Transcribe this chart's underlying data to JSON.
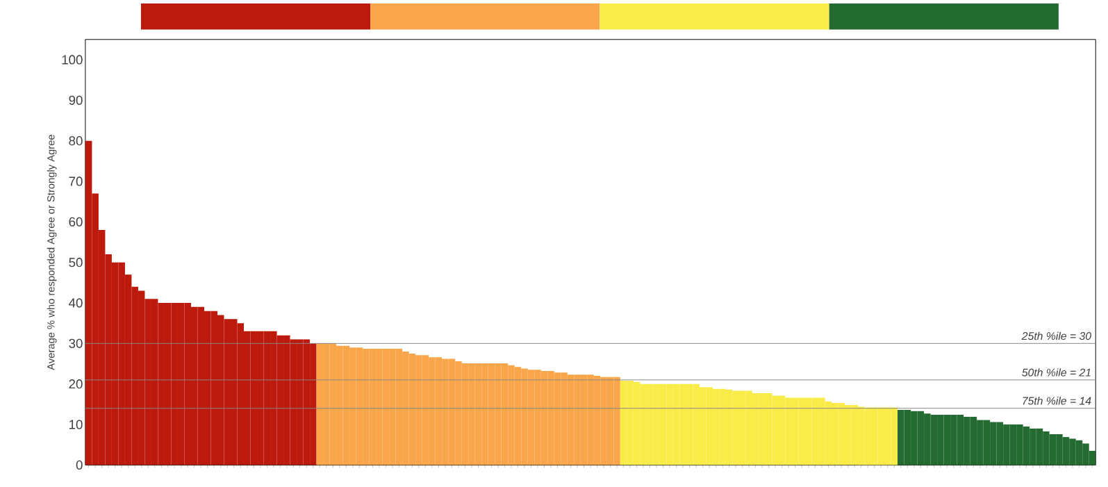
{
  "chart_data": {
    "type": "bar",
    "ylabel": "Average % who responded Agree or Strongly Agree",
    "categories": [
      null,
      null,
      null,
      null,
      null,
      null,
      null,
      null,
      null,
      null,
      null,
      null,
      null,
      null,
      null,
      null,
      null,
      null,
      null,
      null,
      null,
      null,
      null,
      null,
      null,
      null,
      null,
      null,
      null,
      null,
      null,
      null,
      null,
      null,
      null,
      null,
      null,
      null,
      null,
      null,
      null,
      null,
      null,
      null,
      null,
      null,
      null,
      null,
      null,
      null,
      null,
      null,
      null,
      null,
      null,
      null,
      null,
      null,
      null,
      null,
      null,
      null,
      null,
      null,
      null,
      null,
      null,
      null,
      null,
      null,
      null,
      null,
      null,
      null,
      null,
      null,
      null,
      null,
      null,
      null,
      null,
      null,
      null,
      null,
      null,
      null,
      null,
      null,
      null,
      null,
      null,
      null,
      null,
      null,
      null,
      null,
      null,
      null,
      null,
      null,
      null,
      null,
      null,
      null,
      null,
      null,
      null,
      null,
      null,
      null,
      null,
      null,
      null,
      null,
      null,
      null,
      null,
      null,
      null,
      null,
      null,
      null,
      null,
      null,
      null,
      null,
      null,
      null,
      null,
      null,
      null,
      null,
      null,
      null,
      null,
      null,
      null,
      null,
      null,
      null,
      null,
      null,
      null,
      null,
      null,
      null,
      null,
      null,
      null,
      null,
      null,
      null,
      null
    ],
    "series": [
      {
        "color": "#bd1a0e",
        "values": [
          80,
          67,
          58,
          52,
          50,
          50,
          47,
          44,
          43,
          41,
          41,
          40,
          40,
          40,
          40,
          40,
          39,
          39,
          38,
          38,
          37,
          36,
          36,
          35,
          33,
          33,
          33,
          33,
          33,
          32,
          32,
          31,
          31,
          31,
          30,
          null,
          null,
          null,
          null,
          null,
          null,
          null,
          null,
          null,
          null,
          null,
          null,
          null,
          null,
          null,
          null,
          null,
          null,
          null,
          null,
          null,
          null,
          null,
          null,
          null,
          null,
          null,
          null,
          null,
          null,
          null,
          null,
          null,
          null,
          null,
          null,
          null,
          null,
          null,
          null,
          null,
          null,
          null,
          null,
          null,
          null,
          null,
          null,
          null,
          null,
          null,
          null,
          null,
          null,
          null,
          null,
          null,
          null,
          null,
          null,
          null,
          null,
          null,
          null,
          null,
          null,
          null,
          null,
          null,
          null,
          null,
          null,
          null,
          null,
          null,
          null,
          null,
          null,
          null,
          null,
          null,
          null,
          null,
          null,
          null,
          null,
          null,
          null,
          null,
          null,
          null,
          null,
          null,
          null,
          null,
          null,
          null,
          null,
          null,
          null,
          null,
          null,
          null,
          null,
          null,
          null,
          null,
          null,
          null,
          null,
          null,
          null,
          null,
          null,
          null,
          null,
          null,
          null
        ]
      },
      {
        "color": "#f9a54a",
        "values": [
          null,
          null,
          null,
          null,
          null,
          null,
          null,
          null,
          null,
          null,
          null,
          null,
          null,
          null,
          null,
          null,
          null,
          null,
          null,
          null,
          null,
          null,
          null,
          null,
          null,
          null,
          null,
          null,
          null,
          null,
          null,
          null,
          null,
          null,
          null,
          30,
          30,
          30,
          29.4,
          29.4,
          29,
          29,
          28.7,
          28.7,
          28.7,
          28.7,
          28.7,
          28.7,
          28,
          27.5,
          27.1,
          27.1,
          26.6,
          26.6,
          26.2,
          26.2,
          25.6,
          25.1,
          25.1,
          25.1,
          25.1,
          25.1,
          25.1,
          25.1,
          24.6,
          24.2,
          23.8,
          23.5,
          23.5,
          23.2,
          23.2,
          22.8,
          22.8,
          22.3,
          22.3,
          22.3,
          22.3,
          22,
          21.7,
          21.7,
          21.7,
          null,
          null,
          null,
          null,
          null,
          null,
          null,
          null,
          null,
          null,
          null,
          null,
          null,
          null,
          null,
          null,
          null,
          null,
          null,
          null,
          null,
          null,
          null,
          null,
          null,
          null,
          null,
          null,
          null,
          null,
          null,
          null,
          null,
          null,
          null,
          null,
          null,
          null,
          null,
          null,
          null,
          null,
          null,
          null,
          null,
          null,
          null,
          null,
          null,
          null,
          null,
          null,
          null,
          null,
          null,
          null,
          null,
          null,
          null,
          null,
          null,
          null,
          null,
          null,
          null,
          null,
          null,
          null,
          null,
          null,
          null,
          null
        ]
      },
      {
        "color": "#f9ec48",
        "values": [
          null,
          null,
          null,
          null,
          null,
          null,
          null,
          null,
          null,
          null,
          null,
          null,
          null,
          null,
          null,
          null,
          null,
          null,
          null,
          null,
          null,
          null,
          null,
          null,
          null,
          null,
          null,
          null,
          null,
          null,
          null,
          null,
          null,
          null,
          null,
          null,
          null,
          null,
          null,
          null,
          null,
          null,
          null,
          null,
          null,
          null,
          null,
          null,
          null,
          null,
          null,
          null,
          null,
          null,
          null,
          null,
          null,
          null,
          null,
          null,
          null,
          null,
          null,
          null,
          null,
          null,
          null,
          null,
          null,
          null,
          null,
          null,
          null,
          null,
          null,
          null,
          null,
          null,
          null,
          null,
          null,
          20.8,
          20.8,
          20.5,
          20,
          20,
          20,
          20,
          20,
          20,
          20,
          20,
          20,
          19.2,
          19.2,
          18.8,
          18.8,
          18.6,
          18.3,
          18.3,
          18.3,
          17.7,
          17.7,
          17.7,
          17.1,
          17.1,
          16.6,
          16.6,
          16.6,
          16.6,
          16.6,
          16.6,
          15.7,
          15.3,
          15.3,
          14.8,
          14.8,
          14.4,
          14.2,
          14.2,
          14.2,
          14.2,
          14.2,
          null,
          null,
          null,
          null,
          null,
          null,
          null,
          null,
          null,
          null,
          null,
          null,
          null,
          null,
          null,
          null,
          null,
          null,
          null,
          null,
          null,
          null,
          null,
          null,
          null,
          null,
          null,
          null,
          null,
          null
        ]
      },
      {
        "color": "#236b30",
        "values": [
          null,
          null,
          null,
          null,
          null,
          null,
          null,
          null,
          null,
          null,
          null,
          null,
          null,
          null,
          null,
          null,
          null,
          null,
          null,
          null,
          null,
          null,
          null,
          null,
          null,
          null,
          null,
          null,
          null,
          null,
          null,
          null,
          null,
          null,
          null,
          null,
          null,
          null,
          null,
          null,
          null,
          null,
          null,
          null,
          null,
          null,
          null,
          null,
          null,
          null,
          null,
          null,
          null,
          null,
          null,
          null,
          null,
          null,
          null,
          null,
          null,
          null,
          null,
          null,
          null,
          null,
          null,
          null,
          null,
          null,
          null,
          null,
          null,
          null,
          null,
          null,
          null,
          null,
          null,
          null,
          null,
          null,
          null,
          null,
          null,
          null,
          null,
          null,
          null,
          null,
          null,
          null,
          null,
          null,
          null,
          null,
          null,
          null,
          null,
          null,
          null,
          null,
          null,
          null,
          null,
          null,
          null,
          null,
          null,
          null,
          null,
          null,
          null,
          null,
          null,
          null,
          null,
          null,
          null,
          null,
          null,
          null,
          null,
          13.6,
          13.6,
          13.3,
          13.3,
          12.7,
          12.4,
          12.4,
          12.4,
          12.4,
          12.4,
          11.9,
          11.9,
          11.1,
          11.1,
          10.6,
          10.6,
          10,
          10,
          10,
          9.5,
          9,
          9,
          8.3,
          7.6,
          7.6,
          6.9,
          6.5,
          6.1,
          5.3,
          3.5
        ]
      }
    ],
    "ylim": [
      0,
      105
    ],
    "yticks": [
      0,
      10,
      20,
      30,
      40,
      50,
      60,
      70,
      80,
      90,
      100
    ],
    "ref_lines": [
      {
        "axis": "y",
        "value": 30,
        "label": "25th %ile = 30",
        "color": "#888888"
      },
      {
        "axis": "y",
        "value": 21,
        "label": "50th %ile = 21",
        "color": "#888888"
      },
      {
        "axis": "y",
        "value": 14,
        "label": "75th %ile = 14",
        "color": "#888888"
      }
    ]
  }
}
